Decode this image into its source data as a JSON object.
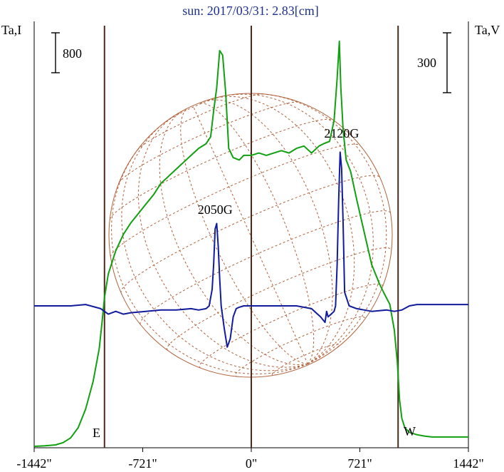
{
  "title": "sun: 2017/03/31: 2.83[cm]",
  "left_axis_label": "Ta,I",
  "right_axis_label": "Ta,V",
  "left_scale_label": "800",
  "right_scale_label": "300",
  "east_label": "E",
  "west_label": "W",
  "colors": {
    "title": "#1b2f8f",
    "intensity": "#10a010",
    "polarization": "#101c9c",
    "limb_lines": "#4a2a1c",
    "solar_disk": "#b0603a",
    "text": "#000000"
  },
  "chart_data": {
    "type": "line",
    "xlim": [
      -1442,
      1442
    ],
    "x_ticks": [
      -1442,
      -721,
      0,
      721,
      1442
    ],
    "x_tick_labels": [
      "-1442\"",
      "-721\"",
      "0\"",
      "721\"",
      "1442\""
    ],
    "limb_positions": [
      -975,
      975
    ],
    "annotations": [
      {
        "text": "2050G",
        "x": -240
      },
      {
        "text": "2120G",
        "x": 600
      }
    ],
    "series": [
      {
        "color": "#10a010",
        "axis": "left",
        "x": [
          -1442,
          -1370,
          -1300,
          -1250,
          -1200,
          -1150,
          -1100,
          -1050,
          -1010,
          -990,
          -975,
          -950,
          -900,
          -850,
          -800,
          -750,
          -700,
          -650,
          -600,
          -550,
          -500,
          -450,
          -400,
          -350,
          -300,
          -270,
          -250,
          -230,
          -210,
          -190,
          -170,
          -150,
          -120,
          -80,
          -50,
          0,
          50,
          100,
          150,
          200,
          250,
          300,
          350,
          400,
          450,
          480,
          520,
          550,
          570,
          585,
          595,
          610,
          630,
          660,
          700,
          750,
          800,
          850,
          880,
          920,
          950,
          970,
          985,
          1000,
          1020,
          1050,
          1100,
          1150,
          1200,
          1250,
          1300,
          1442
        ],
        "y": [
          0,
          10,
          30,
          80,
          180,
          400,
          800,
          1400,
          2100,
          2700,
          3200,
          3700,
          4200,
          4550,
          4800,
          5000,
          5200,
          5400,
          5650,
          5800,
          5950,
          6100,
          6250,
          6400,
          6500,
          6650,
          7200,
          7700,
          8500,
          8400,
          7600,
          6400,
          6200,
          6150,
          6250,
          6250,
          6300,
          6250,
          6300,
          6350,
          6300,
          6400,
          6450,
          6300,
          6450,
          6500,
          6550,
          7000,
          7900,
          8700,
          7700,
          6800,
          6150,
          5900,
          5300,
          4600,
          3900,
          3500,
          3300,
          3050,
          2500,
          1800,
          1000,
          600,
          400,
          300,
          250,
          220,
          200,
          200,
          200,
          200
        ]
      },
      {
        "color": "#101c9c",
        "axis": "right",
        "x": [
          -1442,
          -1200,
          -1100,
          -1000,
          -950,
          -900,
          -850,
          -800,
          -700,
          -600,
          -500,
          -400,
          -350,
          -300,
          -280,
          -260,
          -250,
          -240,
          -230,
          -220,
          -210,
          -200,
          -180,
          -160,
          -140,
          -120,
          -100,
          -80,
          -50,
          0,
          100,
          200,
          300,
          400,
          460,
          490,
          500,
          510,
          530,
          550,
          560,
          570,
          580,
          590,
          600,
          610,
          620,
          650,
          700,
          800,
          900,
          950,
          1000,
          1050,
          1100,
          1442
        ],
        "y": [
          0,
          0,
          5,
          -10,
          -30,
          -20,
          -30,
          -25,
          -20,
          -15,
          -15,
          -10,
          -15,
          -10,
          0,
          60,
          150,
          280,
          300,
          220,
          100,
          0,
          -80,
          -150,
          -120,
          -40,
          -10,
          -5,
          0,
          0,
          0,
          0,
          0,
          -10,
          -40,
          -60,
          -20,
          -40,
          -30,
          -20,
          0,
          150,
          380,
          560,
          500,
          300,
          50,
          0,
          -10,
          -20,
          -15,
          -20,
          -15,
          0,
          5,
          5
        ]
      }
    ]
  }
}
